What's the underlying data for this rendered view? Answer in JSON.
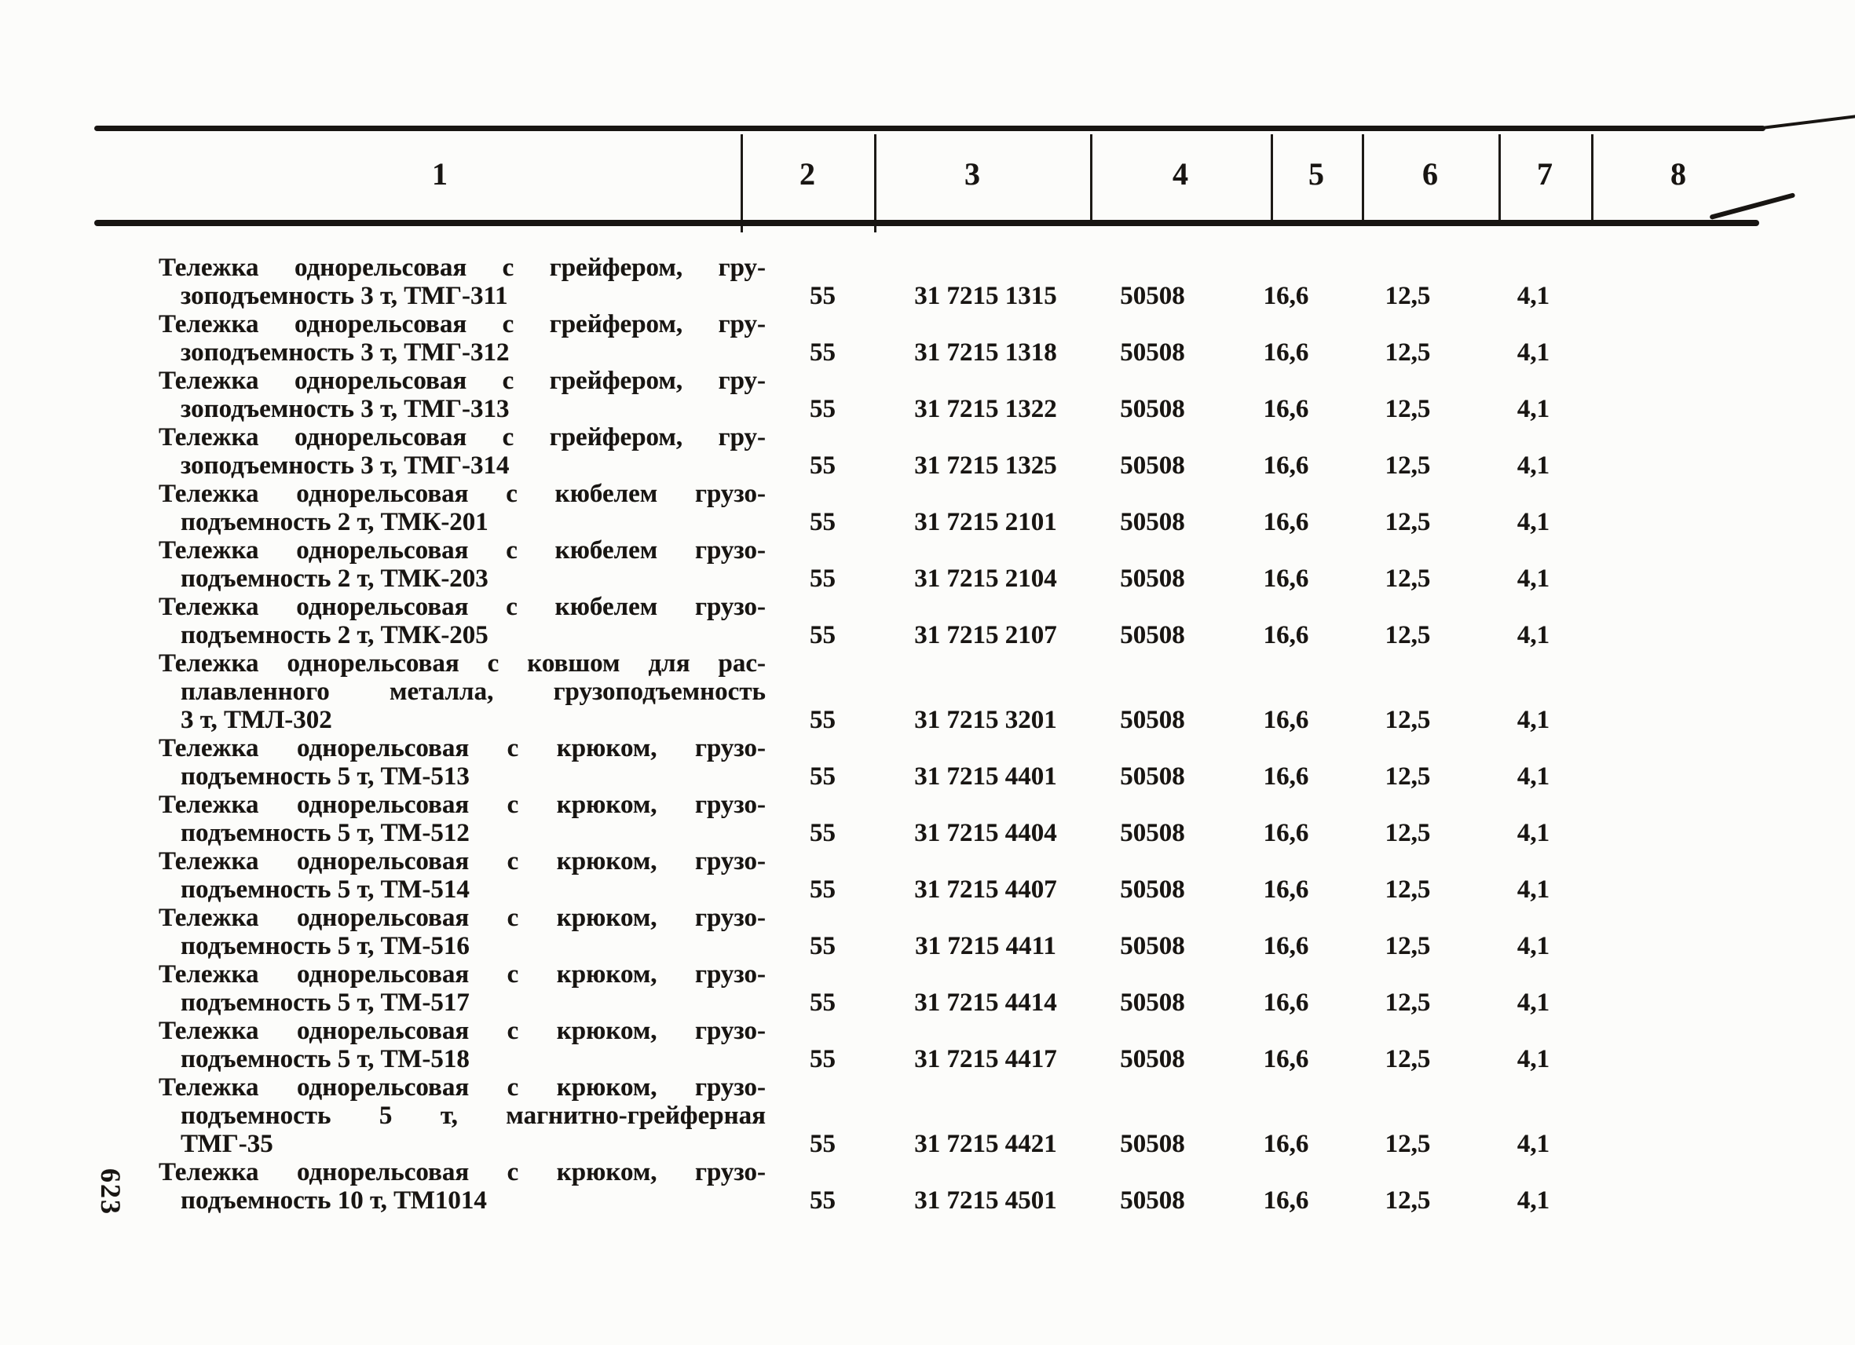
{
  "page": {
    "number": "623"
  },
  "colors": {
    "paper": "#fcfcfa",
    "ink": "#181512"
  },
  "table": {
    "header_cols": [
      "1",
      "2",
      "3",
      "4",
      "5",
      "6",
      "7",
      "8"
    ],
    "rows": [
      {
        "lines": [
          "Тележка однорельсовая с грейфером, гру-",
          "зоподъемность 3 т, ТМГ-311"
        ],
        "values": [
          "55",
          "31 7215 1315",
          "50508",
          "16,6",
          "12,5",
          "4,1",
          ""
        ]
      },
      {
        "lines": [
          "Тележка однорельсовая с грейфером, гру-",
          "зоподъемность 3 т, ТМГ-312"
        ],
        "values": [
          "55",
          "31 7215 1318",
          "50508",
          "16,6",
          "12,5",
          "4,1",
          ""
        ]
      },
      {
        "lines": [
          "Тележка однорельсовая с грейфером, гру-",
          "зоподъемность 3 т, ТМГ-313"
        ],
        "values": [
          "55",
          "31 7215 1322",
          "50508",
          "16,6",
          "12,5",
          "4,1",
          ""
        ]
      },
      {
        "lines": [
          "Тележка однорельсовая с грейфером, гру-",
          "зоподъемность 3 т, ТМГ-314"
        ],
        "values": [
          "55",
          "31 7215 1325",
          "50508",
          "16,6",
          "12,5",
          "4,1",
          ""
        ]
      },
      {
        "lines": [
          "Тележка однорельсовая с кюбелем грузо-",
          "подъемность 2 т, ТМК-201"
        ],
        "values": [
          "55",
          "31 7215 2101",
          "50508",
          "16,6",
          "12,5",
          "4,1",
          ""
        ]
      },
      {
        "lines": [
          "Тележка однорельсовая с кюбелем грузо-",
          "подъемность 2 т, ТМК-203"
        ],
        "values": [
          "55",
          "31 7215 2104",
          "50508",
          "16,6",
          "12,5",
          "4,1",
          ""
        ]
      },
      {
        "lines": [
          "Тележка однорельсовая с кюбелем грузо-",
          "подъемность 2 т, ТМК-205"
        ],
        "values": [
          "55",
          "31 7215 2107",
          "50508",
          "16,6",
          "12,5",
          "4,1",
          ""
        ]
      },
      {
        "lines": [
          "Тележка однорельсовая с ковшом для рас-",
          "плавленного металла, грузоподъемность",
          "3 т, ТМЛ-302"
        ],
        "values": [
          "55",
          "31 7215 3201",
          "50508",
          "16,6",
          "12,5",
          "4,1",
          ""
        ]
      },
      {
        "lines": [
          "Тележка однорельсовая с крюком, грузо-",
          "подъемность 5 т, ТМ-513"
        ],
        "values": [
          "55",
          "31 7215 4401",
          "50508",
          "16,6",
          "12,5",
          "4,1",
          ""
        ]
      },
      {
        "lines": [
          "Тележка однорельсовая с крюком, грузо-",
          "подъемность 5 т, ТМ-512"
        ],
        "values": [
          "55",
          "31 7215 4404",
          "50508",
          "16,6",
          "12,5",
          "4,1",
          ""
        ]
      },
      {
        "lines": [
          "Тележка однорельсовая с крюком, грузо-",
          "подъемность 5 т, ТМ-514"
        ],
        "values": [
          "55",
          "31 7215 4407",
          "50508",
          "16,6",
          "12,5",
          "4,1",
          ""
        ]
      },
      {
        "lines": [
          "Тележка однорельсовая с крюком, грузо-",
          "подъемность 5 т, ТМ-516"
        ],
        "values": [
          "55",
          "31 7215 4411",
          "50508",
          "16,6",
          "12,5",
          "4,1",
          ""
        ]
      },
      {
        "lines": [
          "Тележка однорельсовая с крюком, грузо-",
          "подъемность 5 т, ТМ-517"
        ],
        "values": [
          "55",
          "31 7215 4414",
          "50508",
          "16,6",
          "12,5",
          "4,1",
          ""
        ]
      },
      {
        "lines": [
          "Тележка однорельсовая с крюком, грузо-",
          "подъемность 5 т, ТМ-518"
        ],
        "values": [
          "55",
          "31 7215 4417",
          "50508",
          "16,6",
          "12,5",
          "4,1",
          ""
        ]
      },
      {
        "lines": [
          "Тележка однорельсовая с крюком, грузо-",
          "подъемность 5 т, магнитно-грейферная",
          "ТМГ-35"
        ],
        "values": [
          "55",
          "31 7215 4421",
          "50508",
          "16,6",
          "12,5",
          "4,1",
          ""
        ]
      },
      {
        "lines": [
          "Тележка однорельсовая с крюком, грузо-",
          "подъемность 10 т, ТМ1014"
        ],
        "values": [
          "55",
          "31 7215 4501",
          "50508",
          "16,6",
          "12,5",
          "4,1",
          ""
        ]
      }
    ]
  }
}
